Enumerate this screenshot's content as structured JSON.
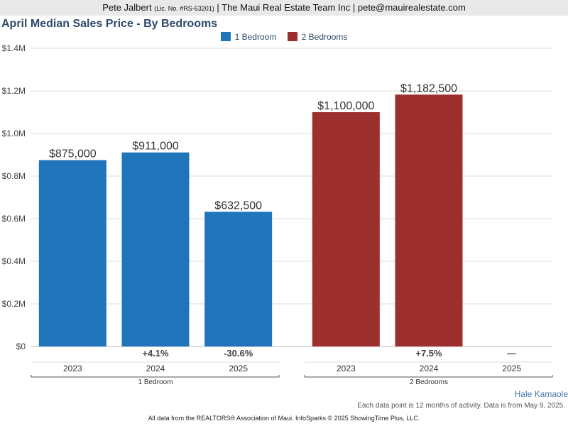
{
  "header": {
    "agent_name": "Pete Jalbert",
    "license": "(Lic. No. #RS-63201)",
    "company_email": "| The Maui Real Estate Team Inc | pete@mauirealestate.com"
  },
  "chart_data": {
    "type": "bar",
    "title": "April Median Sales Price - By Bedrooms",
    "xlabel": "",
    "ylabel": "",
    "ylim": [
      0,
      1400000
    ],
    "y_ticks": [
      {
        "value": 0,
        "label": "$0"
      },
      {
        "value": 200000,
        "label": "$0.2M"
      },
      {
        "value": 400000,
        "label": "$0.4M"
      },
      {
        "value": 600000,
        "label": "$0.6M"
      },
      {
        "value": 800000,
        "label": "$0.8M"
      },
      {
        "value": 1000000,
        "label": "$1.0M"
      },
      {
        "value": 1200000,
        "label": "$1.2M"
      },
      {
        "value": 1400000,
        "label": "$1.4M"
      }
    ],
    "grid": true,
    "legend_position": "top-center",
    "series": [
      {
        "name": "1 Bedroom",
        "color": "#1f74bb",
        "categories": [
          "2023",
          "2024",
          "2025"
        ],
        "values": [
          875000,
          911000,
          632500
        ],
        "value_labels": [
          "$875,000",
          "$911,000",
          "$632,500"
        ],
        "changes": [
          "",
          "+4.1%",
          "-30.6%"
        ]
      },
      {
        "name": "2 Bedrooms",
        "color": "#9e2f2f",
        "categories": [
          "2023",
          "2024",
          "2025"
        ],
        "values": [
          1100000,
          1182500,
          null
        ],
        "value_labels": [
          "$1,100,000",
          "$1,182,500",
          ""
        ],
        "changes": [
          "",
          "+7.5%",
          "—"
        ]
      }
    ]
  },
  "footer": {
    "region": "Hale Kamaole",
    "note": "Each data point is 12 months of activity. Data is from May 9, 2025.",
    "source": "All data from the REALTORS® Association of Maui. InfoSparks © 2025 ShowingTime Plus, LLC."
  }
}
